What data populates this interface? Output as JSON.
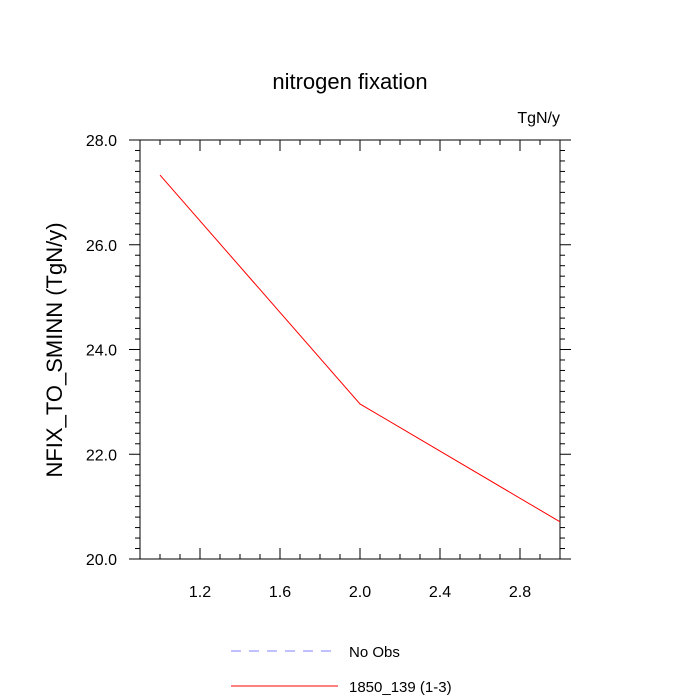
{
  "chart_data": {
    "type": "line",
    "title": "nitrogen fixation",
    "units_label": "TgN/y",
    "ylabel": "NFIX_TO_SMINN  (TgN/y)",
    "xlabel": "",
    "xlim": [
      0.9,
      3.0
    ],
    "ylim": [
      20.0,
      28.0
    ],
    "x_ticks": [
      1.2,
      1.6,
      2.0,
      2.4,
      2.8
    ],
    "x_tick_labels": [
      "1.2",
      "1.6",
      "2.0",
      "2.4",
      "2.8"
    ],
    "y_ticks": [
      20.0,
      22.0,
      24.0,
      26.0,
      28.0
    ],
    "y_tick_labels": [
      "20.0",
      "22.0",
      "24.0",
      "26.0",
      "28.0"
    ],
    "grid": false,
    "legend_position": "bottom",
    "series": [
      {
        "name": "No Obs",
        "x": [],
        "y": [],
        "color": "#8080ff",
        "dash": true
      },
      {
        "name": "1850_139 (1-3)",
        "x": [
          1.0,
          2.0,
          3.0
        ],
        "y": [
          27.33,
          22.96,
          20.71
        ],
        "color": "#ff0000",
        "dash": false
      }
    ]
  }
}
